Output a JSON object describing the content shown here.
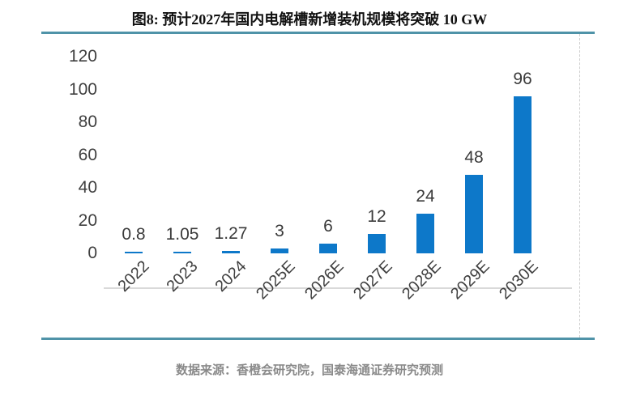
{
  "header": {
    "title": "图8: 预计2027年国内电解槽新增装机规模将突破 10 GW"
  },
  "footer": {
    "source": "数据来源：香橙会研究院，国泰海通证券研究预测"
  },
  "colors": {
    "bar": "#0d78c9",
    "rule": "#4f93a8",
    "axis_line": "#d9d9d9",
    "tick_text": "#3f3f3f",
    "source_text": "#8a8a8a"
  },
  "chart_data": {
    "type": "bar",
    "title": "图8: 预计2027年国内电解槽新增装机规模将突破 10 GW",
    "categories": [
      "2022",
      "2023",
      "2024",
      "2025E",
      "2026E",
      "2027E",
      "2028E",
      "2029E",
      "2030E"
    ],
    "values": [
      0.8,
      1.05,
      1.27,
      3,
      6,
      12,
      24,
      48,
      96
    ],
    "value_labels": [
      "0.8",
      "1.05",
      "1.27",
      "3",
      "6",
      "12",
      "24",
      "48",
      "96"
    ],
    "ylim": [
      0,
      120
    ],
    "yticks": [
      0,
      20,
      40,
      60,
      80,
      100,
      120
    ],
    "grid": false,
    "legend": "none",
    "xlabel": "",
    "ylabel": "",
    "x_tick_rotation_deg": 45
  }
}
